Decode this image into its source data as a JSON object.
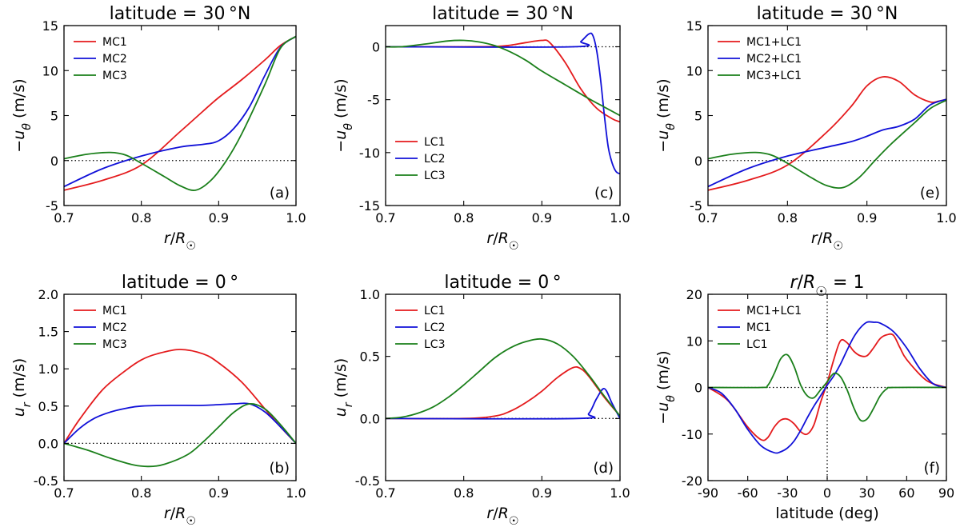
{
  "figure": {
    "colors": {
      "red": "#e41a1c",
      "blue": "#1010d8",
      "green": "#1a7f1a",
      "zero_line": "#000000"
    }
  },
  "chart_data": [
    {
      "panel": "a",
      "type": "line",
      "tag": "(a)",
      "title": "latitude = 30 °N",
      "xlabel": "r/R☉",
      "ylabel": "−uθ (m/s)",
      "xlim": [
        0.7,
        1.0
      ],
      "ylim": [
        -5,
        15
      ],
      "xticks": [
        0.7,
        0.8,
        0.9,
        1.0
      ],
      "xtick_labels": [
        "0.7",
        "0.8",
        "0.9",
        "1.0"
      ],
      "yticks": [
        -5,
        0,
        5,
        10,
        15
      ],
      "ytick_labels": [
        "-5",
        "0",
        "5",
        "10",
        "15"
      ],
      "zero_line": true,
      "legend_position": "top-left",
      "series": [
        {
          "name": "MC1",
          "color": "red",
          "x": [
            0.7,
            0.75,
            0.8,
            0.85,
            0.88,
            0.9,
            0.93,
            0.96,
            0.98,
            1.0
          ],
          "y": [
            -3.3,
            -2.2,
            -0.5,
            3.2,
            5.5,
            7.0,
            9.0,
            11.2,
            12.8,
            13.8
          ]
        },
        {
          "name": "MC2",
          "color": "blue",
          "x": [
            0.7,
            0.75,
            0.8,
            0.85,
            0.88,
            0.9,
            0.92,
            0.94,
            0.96,
            0.98,
            1.0
          ],
          "y": [
            -2.9,
            -0.9,
            0.5,
            1.5,
            1.8,
            2.2,
            3.6,
            6.0,
            9.5,
            12.6,
            13.8
          ]
        },
        {
          "name": "MC3",
          "color": "green",
          "x": [
            0.7,
            0.73,
            0.76,
            0.78,
            0.8,
            0.83,
            0.85,
            0.87,
            0.89,
            0.91,
            0.93,
            0.96,
            0.98,
            1.0
          ],
          "y": [
            0.2,
            0.7,
            0.9,
            0.6,
            -0.3,
            -1.8,
            -2.8,
            -3.3,
            -2.2,
            0.0,
            3.0,
            8.5,
            12.5,
            13.8
          ]
        }
      ]
    },
    {
      "panel": "c",
      "type": "line",
      "tag": "(c)",
      "title": "latitude = 30 °N",
      "xlabel": "r/R☉",
      "ylabel": "−uθ (m/s)",
      "xlim": [
        0.7,
        1.0
      ],
      "ylim": [
        -15,
        2
      ],
      "xticks": [
        0.7,
        0.8,
        0.9,
        1.0
      ],
      "xtick_labels": [
        "0.7",
        "0.8",
        "0.9",
        "1.0"
      ],
      "yticks": [
        -15,
        -10,
        -5,
        0
      ],
      "ytick_labels": [
        "-15",
        "-10",
        "-5",
        "0"
      ],
      "zero_line": true,
      "legend_position": "bottom-left",
      "series": [
        {
          "name": "LC1",
          "color": "red",
          "x": [
            0.7,
            0.72,
            0.8,
            0.84,
            0.86,
            0.88,
            0.9,
            0.91,
            0.93,
            0.95,
            0.97,
            0.99,
            1.0
          ],
          "y": [
            0,
            0,
            0,
            0.02,
            0.15,
            0.4,
            0.6,
            0.4,
            -1.5,
            -4.0,
            -5.8,
            -6.8,
            -7.1
          ]
        },
        {
          "name": "LC2",
          "color": "blue",
          "x": [
            0.7,
            0.94,
            0.95,
            0.96,
            0.965,
            0.97,
            0.975,
            0.98,
            0.985,
            0.99,
            0.995,
            1.0
          ],
          "y": [
            0,
            0,
            0.5,
            1.2,
            1.1,
            -0.3,
            -3.0,
            -6.5,
            -9.5,
            -11.0,
            -11.8,
            -12.0
          ]
        },
        {
          "name": "LC3",
          "color": "green",
          "x": [
            0.7,
            0.72,
            0.75,
            0.78,
            0.8,
            0.82,
            0.84,
            0.86,
            0.88,
            0.9,
            0.93,
            0.96,
            0.98,
            1.0
          ],
          "y": [
            0,
            0,
            0.25,
            0.55,
            0.6,
            0.45,
            0.1,
            -0.5,
            -1.3,
            -2.3,
            -3.6,
            -4.9,
            -5.7,
            -6.5
          ]
        }
      ]
    },
    {
      "panel": "e",
      "type": "line",
      "tag": "(e)",
      "title": "latitude = 30 °N",
      "xlabel": "r/R☉",
      "ylabel": "−uθ (m/s)",
      "xlim": [
        0.7,
        1.0
      ],
      "ylim": [
        -5,
        15
      ],
      "xticks": [
        0.7,
        0.8,
        0.9,
        1.0
      ],
      "xtick_labels": [
        "0.7",
        "0.8",
        "0.9",
        "1.0"
      ],
      "yticks": [
        -5,
        0,
        5,
        10,
        15
      ],
      "ytick_labels": [
        "-5",
        "0",
        "5",
        "10",
        "15"
      ],
      "zero_line": true,
      "legend_position": "top-left",
      "series": [
        {
          "name": "MC1+LC1",
          "color": "red",
          "x": [
            0.7,
            0.75,
            0.8,
            0.85,
            0.88,
            0.9,
            0.92,
            0.94,
            0.96,
            0.98,
            0.99,
            1.0
          ],
          "y": [
            -3.3,
            -2.2,
            -0.5,
            3.2,
            6.0,
            8.3,
            9.3,
            8.8,
            7.3,
            6.5,
            6.6,
            6.8
          ]
        },
        {
          "name": "MC2+LC1",
          "color": "blue",
          "x": [
            0.7,
            0.75,
            0.8,
            0.85,
            0.88,
            0.9,
            0.92,
            0.94,
            0.96,
            0.98,
            1.0
          ],
          "y": [
            -2.9,
            -0.9,
            0.5,
            1.5,
            2.1,
            2.7,
            3.4,
            3.8,
            4.6,
            6.2,
            6.8
          ]
        },
        {
          "name": "MC3+LC1",
          "color": "green",
          "x": [
            0.7,
            0.73,
            0.76,
            0.78,
            0.8,
            0.83,
            0.85,
            0.87,
            0.89,
            0.91,
            0.93,
            0.96,
            0.98,
            1.0
          ],
          "y": [
            0.2,
            0.7,
            0.9,
            0.6,
            -0.3,
            -1.9,
            -2.8,
            -3.0,
            -1.9,
            0.0,
            1.8,
            4.2,
            5.8,
            6.7
          ]
        }
      ]
    },
    {
      "panel": "b",
      "type": "line",
      "tag": "(b)",
      "title": "latitude = 0 °",
      "xlabel": "r/R☉",
      "ylabel": "ur (m/s)",
      "xlim": [
        0.7,
        1.0
      ],
      "ylim": [
        -0.5,
        2.0
      ],
      "xticks": [
        0.7,
        0.8,
        0.9,
        1.0
      ],
      "xtick_labels": [
        "0.7",
        "0.8",
        "0.9",
        "1.0"
      ],
      "yticks": [
        -0.5,
        0.0,
        0.5,
        1.0,
        1.5,
        2.0
      ],
      "ytick_labels": [
        "-0.5",
        "0.0",
        "0.5",
        "1.0",
        "1.5",
        "2.0"
      ],
      "zero_line": true,
      "legend_position": "top-left",
      "series": [
        {
          "name": "MC1",
          "color": "red",
          "x": [
            0.7,
            0.72,
            0.75,
            0.78,
            0.8,
            0.82,
            0.85,
            0.88,
            0.9,
            0.93,
            0.96,
            0.98,
            1.0
          ],
          "y": [
            0,
            0.32,
            0.72,
            0.98,
            1.12,
            1.2,
            1.26,
            1.2,
            1.08,
            0.82,
            0.46,
            0.22,
            0.0
          ]
        },
        {
          "name": "MC2",
          "color": "blue",
          "x": [
            0.7,
            0.72,
            0.74,
            0.76,
            0.78,
            0.8,
            0.84,
            0.88,
            0.92,
            0.94,
            0.96,
            0.98,
            1.0
          ],
          "y": [
            0,
            0.2,
            0.34,
            0.42,
            0.47,
            0.5,
            0.51,
            0.51,
            0.53,
            0.53,
            0.42,
            0.22,
            0.0
          ]
        },
        {
          "name": "MC3",
          "color": "green",
          "x": [
            0.7,
            0.73,
            0.76,
            0.79,
            0.81,
            0.83,
            0.86,
            0.88,
            0.9,
            0.92,
            0.94,
            0.96,
            0.98,
            1.0
          ],
          "y": [
            0,
            -0.09,
            -0.2,
            -0.29,
            -0.31,
            -0.28,
            -0.15,
            0.02,
            0.22,
            0.42,
            0.53,
            0.46,
            0.25,
            0.0
          ]
        }
      ]
    },
    {
      "panel": "d",
      "type": "line",
      "tag": "(d)",
      "title": "latitude = 0 °",
      "xlabel": "r/R☉",
      "ylabel": "ur (m/s)",
      "xlim": [
        0.7,
        1.0
      ],
      "ylim": [
        -0.5,
        1.0
      ],
      "xticks": [
        0.7,
        0.8,
        0.9,
        1.0
      ],
      "xtick_labels": [
        "0.7",
        "0.8",
        "0.9",
        "1.0"
      ],
      "yticks": [
        -0.5,
        0.0,
        0.5,
        1.0
      ],
      "ytick_labels": [
        "-0.5",
        "0.0",
        "0.5",
        "1.0"
      ],
      "zero_line": true,
      "legend_position": "top-left",
      "series": [
        {
          "name": "LC1",
          "color": "red",
          "x": [
            0.7,
            0.8,
            0.84,
            0.86,
            0.88,
            0.9,
            0.92,
            0.94,
            0.95,
            0.96,
            0.98,
            1.0
          ],
          "y": [
            0,
            0,
            0.02,
            0.06,
            0.13,
            0.22,
            0.33,
            0.41,
            0.4,
            0.34,
            0.17,
            0.02
          ]
        },
        {
          "name": "LC2",
          "color": "blue",
          "x": [
            0.7,
            0.945,
            0.96,
            0.97,
            0.98,
            0.99,
            1.0
          ],
          "y": [
            0,
            0,
            0.04,
            0.16,
            0.24,
            0.12,
            0.0
          ]
        },
        {
          "name": "LC3",
          "color": "green",
          "x": [
            0.7,
            0.72,
            0.74,
            0.76,
            0.78,
            0.8,
            0.82,
            0.84,
            0.86,
            0.88,
            0.9,
            0.92,
            0.94,
            0.96,
            0.98,
            1.0
          ],
          "y": [
            0,
            0.01,
            0.04,
            0.09,
            0.17,
            0.27,
            0.38,
            0.49,
            0.57,
            0.62,
            0.64,
            0.6,
            0.5,
            0.35,
            0.18,
            0.02
          ]
        }
      ]
    },
    {
      "panel": "f",
      "type": "line",
      "tag": "(f)",
      "title": "r/R☉ = 1",
      "xlabel": "latitude (deg)",
      "ylabel": "−uθ (m/s)",
      "xlim": [
        -90,
        90
      ],
      "ylim": [
        -20,
        20
      ],
      "xticks": [
        -90,
        -60,
        -30,
        0,
        30,
        60,
        90
      ],
      "xtick_labels": [
        "-90",
        "-60",
        "-30",
        "0",
        "30",
        "60",
        "90"
      ],
      "yticks": [
        -20,
        -10,
        0,
        10,
        20
      ],
      "ytick_labels": [
        "-20",
        "-10",
        "0",
        "10",
        "20"
      ],
      "zero_line": true,
      "vertical_zero_line": true,
      "legend_position": "top-left",
      "series": [
        {
          "name": "MC1+LC1",
          "color": "red",
          "x": [
            -90,
            -75,
            -60,
            -50,
            -45,
            -40,
            -35,
            -30,
            -25,
            -20,
            -15,
            -10,
            -5,
            0,
            5,
            10,
            15,
            20,
            25,
            30,
            35,
            40,
            45,
            50,
            55,
            60,
            75,
            90
          ],
          "y": [
            0,
            -2.8,
            -8.5,
            -11.2,
            -10.8,
            -8.5,
            -7.0,
            -6.8,
            -7.8,
            -9.5,
            -10.0,
            -8.0,
            -3.2,
            1.0,
            6.0,
            10.0,
            9.6,
            7.8,
            6.8,
            6.8,
            8.5,
            10.5,
            11.3,
            11.2,
            8.5,
            6.0,
            1.5,
            0
          ]
        },
        {
          "name": "MC1",
          "color": "blue",
          "x": [
            -90,
            -80,
            -70,
            -60,
            -50,
            -40,
            -35,
            -30,
            -25,
            -20,
            -15,
            -10,
            -5,
            0,
            5,
            10,
            15,
            20,
            25,
            30,
            35,
            40,
            50,
            60,
            70,
            80,
            90
          ],
          "y": [
            0,
            -1.2,
            -4.5,
            -9.0,
            -12.5,
            -14.0,
            -13.8,
            -13.0,
            -11.5,
            -9.2,
            -6.5,
            -4.0,
            -1.8,
            0.5,
            2.5,
            5.0,
            8.0,
            10.8,
            12.8,
            14.0,
            14.0,
            13.8,
            12.0,
            8.5,
            4.0,
            0.8,
            0
          ]
        },
        {
          "name": "LC1",
          "color": "green",
          "x": [
            -90,
            -50,
            -45,
            -40,
            -35,
            -30,
            -25,
            -20,
            -15,
            -10,
            -5,
            0,
            5,
            10,
            15,
            20,
            25,
            30,
            35,
            40,
            45,
            50,
            90
          ],
          "y": [
            0,
            0,
            0.4,
            3.0,
            6.2,
            7.0,
            4.5,
            0.5,
            -1.8,
            -2.2,
            -0.5,
            1.2,
            3.0,
            2.3,
            -0.5,
            -4.3,
            -7.0,
            -6.8,
            -4.5,
            -1.8,
            -0.3,
            0,
            0
          ]
        }
      ]
    }
  ]
}
